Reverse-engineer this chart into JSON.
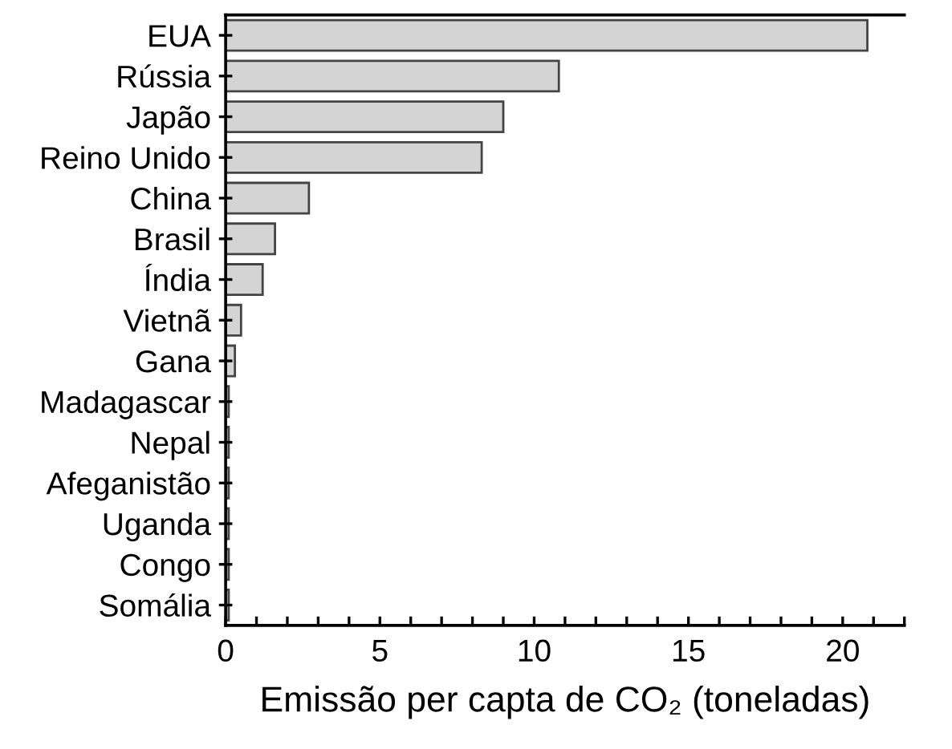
{
  "chart_data": {
    "type": "bar",
    "orientation": "horizontal",
    "xlabel": "Emissão per capta de CO₂ (toneladas)",
    "categories": [
      "EUA",
      "Rússia",
      "Japão",
      "Reino Unido",
      "China",
      "Brasil",
      "Índia",
      "Vietnã",
      "Gana",
      "Madagascar",
      "Nepal",
      "Afeganistão",
      "Uganda",
      "Congo",
      "Somália"
    ],
    "values": [
      20.8,
      10.8,
      9.0,
      8.3,
      2.7,
      1.6,
      1.2,
      0.5,
      0.3,
      0.1,
      0.1,
      0.1,
      0.1,
      0.1,
      0.1
    ],
    "color": "#d4d4d4",
    "xlim": [
      0,
      22
    ],
    "xticks": [
      0,
      {
        "value": 1,
        "label": null
      },
      {
        "value": 2,
        "label": null
      },
      {
        "value": 3,
        "label": null
      },
      {
        "value": 4,
        "label": null
      },
      5,
      {
        "value": 6,
        "label": null
      },
      {
        "value": 7,
        "label": null
      },
      {
        "value": 8,
        "label": null
      },
      {
        "value": 9,
        "label": null
      },
      10,
      {
        "value": 11,
        "label": null
      },
      {
        "value": 12,
        "label": null
      },
      {
        "value": 13,
        "label": null
      },
      {
        "value": 14,
        "label": null
      },
      15,
      {
        "value": 16,
        "label": null
      },
      {
        "value": 17,
        "label": null
      },
      {
        "value": 18,
        "label": null
      },
      {
        "value": 19,
        "label": null
      },
      20,
      {
        "value": 21,
        "label": null
      },
      {
        "value": 22,
        "label": null
      }
    ],
    "grid": false
  }
}
